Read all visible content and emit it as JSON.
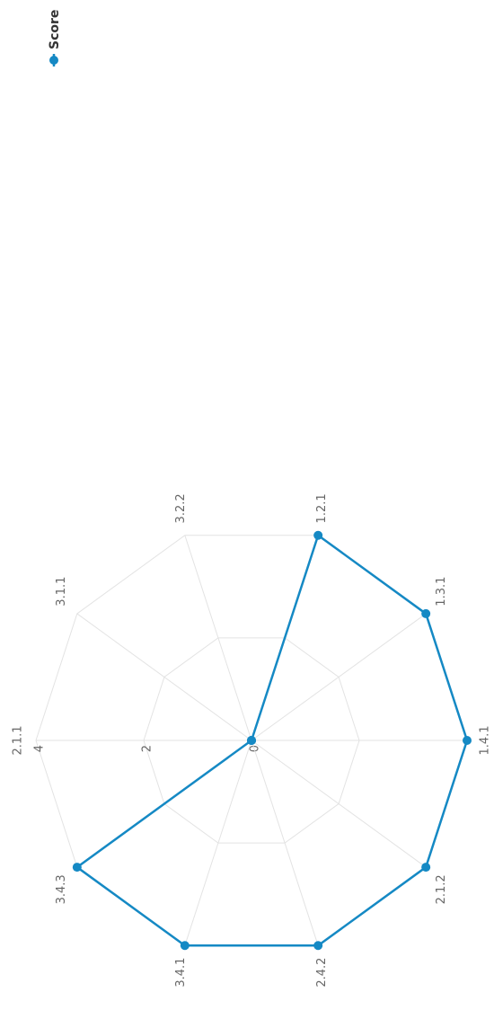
{
  "chart_data": {
    "type": "radar",
    "categories": [
      "2.1.1",
      "3.1.1",
      "3.2.2",
      "1.2.1",
      "1.3.1",
      "1.4.1",
      "2.1.2",
      "2.4.2",
      "3.4.1",
      "3.4.3"
    ],
    "series": [
      {
        "name": "Score",
        "color": "#1589c4",
        "values": [
          0,
          0,
          0,
          4,
          4,
          4,
          4,
          4,
          4,
          4
        ]
      }
    ],
    "rlim": [
      0,
      4
    ],
    "rticks": [
      0,
      2,
      4
    ],
    "grid": true
  }
}
